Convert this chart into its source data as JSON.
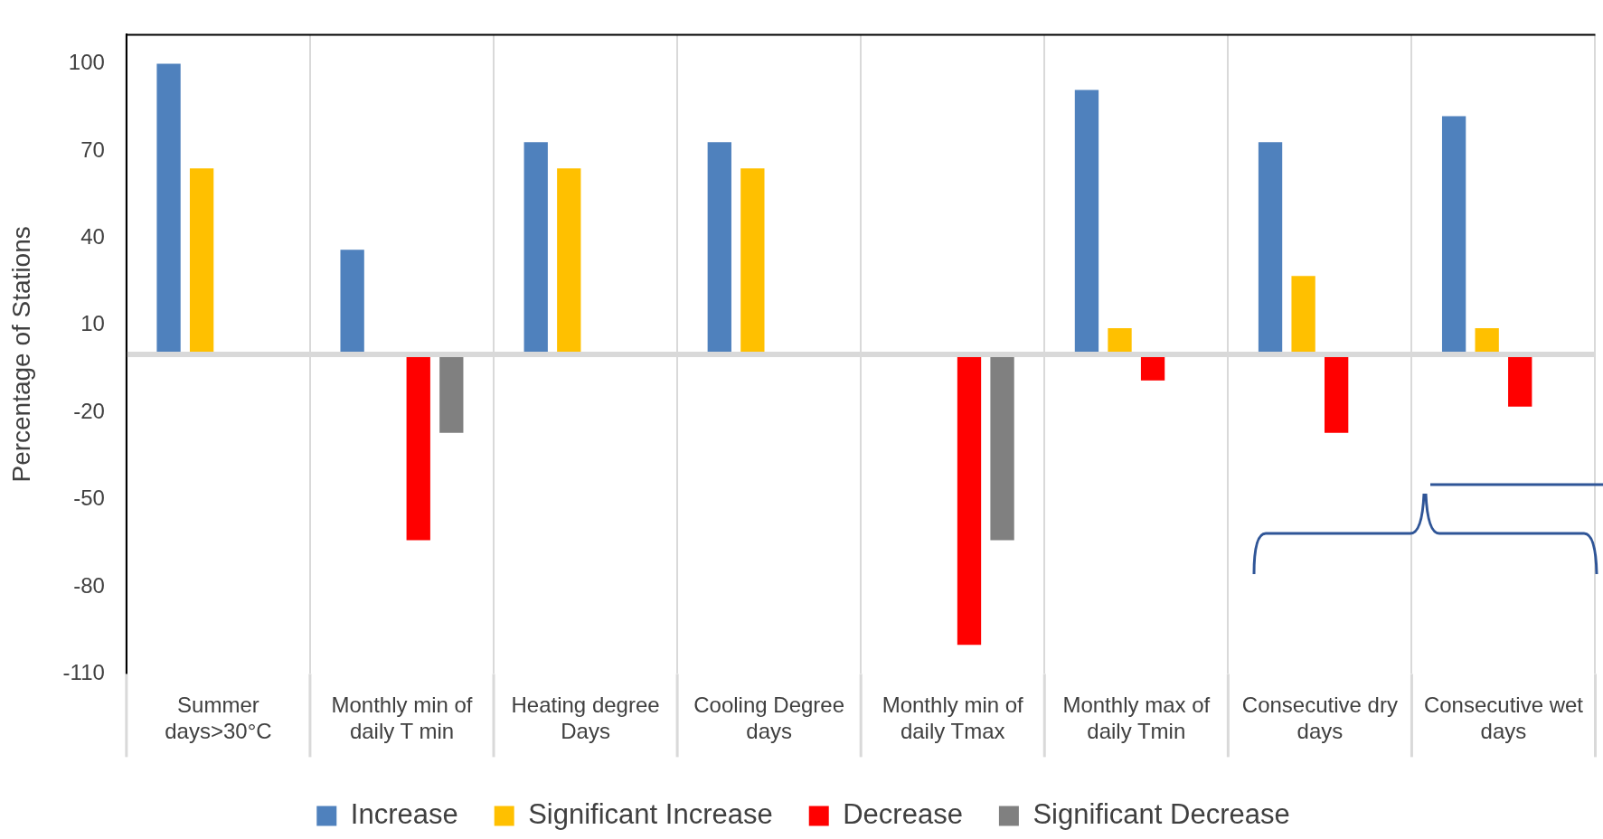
{
  "chart_data": {
    "type": "bar",
    "ylabel": "Percentage of Stations",
    "categories": [
      "Summer days>30°C",
      "Monthly min of daily T min",
      "Heating degree Days",
      "Cooling Degree days",
      "Monthly min of daily Tmax",
      "Monthly max of daily Tmin",
      "Consecutive dry days",
      "Consecutive wet days"
    ],
    "series": [
      {
        "name": "Increase",
        "color": "#4f81bd",
        "values": [
          100,
          36,
          73,
          73,
          null,
          91,
          73,
          82
        ]
      },
      {
        "name": "Significant Increase",
        "color": "#ffc000",
        "values": [
          64,
          null,
          64,
          64,
          null,
          9,
          27,
          9
        ]
      },
      {
        "name": "Decrease",
        "color": "#ff0000",
        "values": [
          null,
          -64,
          null,
          null,
          -100,
          -9,
          -27,
          -18
        ]
      },
      {
        "name": "Significant Decrease",
        "color": "#808080",
        "values": [
          null,
          -27,
          null,
          null,
          -64,
          null,
          null,
          null
        ]
      }
    ],
    "ylim": [
      -110,
      110
    ],
    "yticks": [
      100,
      70,
      40,
      10,
      -20,
      -50,
      -80,
      -110
    ],
    "grid": "x",
    "legend": "bottom"
  }
}
